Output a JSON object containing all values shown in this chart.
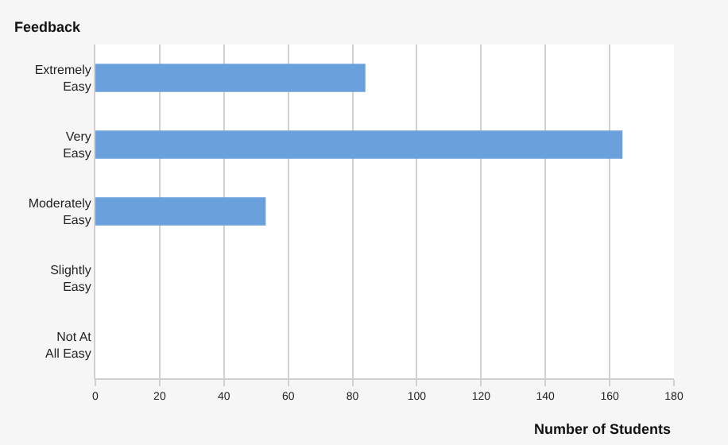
{
  "chart_data": {
    "type": "bar",
    "orientation": "horizontal",
    "ylabel": "Feedback",
    "xlabel": "Number of Students",
    "categories": [
      "Extremely\nEasy",
      "Very\nEasy",
      "Moderately\nEasy",
      "Slightly\nEasy",
      "Not At\nAll Easy"
    ],
    "values": [
      84,
      164,
      53,
      0,
      0
    ],
    "color": "#6aa0dc",
    "xlim": [
      0,
      180
    ],
    "xticks": [
      0,
      20,
      40,
      60,
      80,
      100,
      120,
      140,
      160,
      180
    ],
    "grid": "x"
  }
}
